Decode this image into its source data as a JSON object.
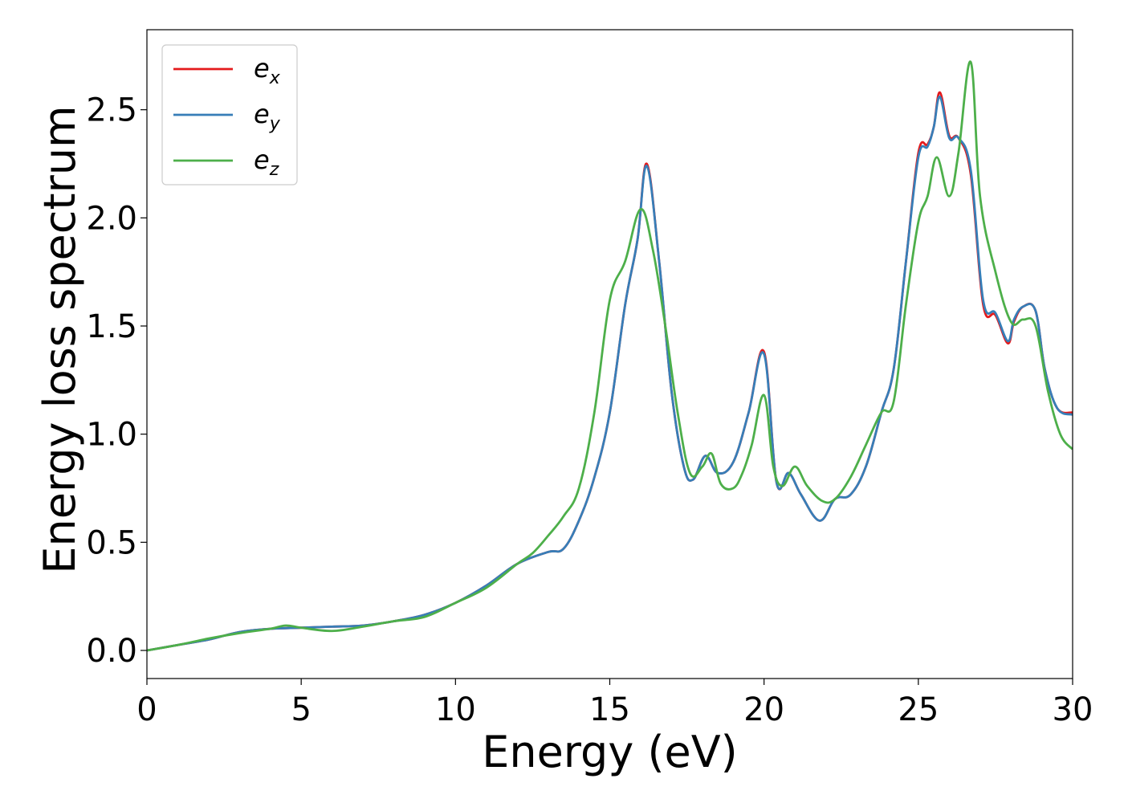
{
  "chart_data": {
    "type": "line",
    "xlabel": "Energy (eV)",
    "ylabel": "Energy loss spectrum",
    "xlim": [
      0,
      30
    ],
    "ylim": [
      -0.13,
      2.87
    ],
    "xticks": [
      0,
      5,
      10,
      15,
      20,
      25,
      30
    ],
    "xtick_labels": [
      "0",
      "5",
      "10",
      "15",
      "20",
      "25",
      "30"
    ],
    "yticks": [
      0.0,
      0.5,
      1.0,
      1.5,
      2.0,
      2.5
    ],
    "ytick_labels": [
      "0.0",
      "0.5",
      "1.0",
      "1.5",
      "2.0",
      "2.5"
    ],
    "grid": false,
    "legend_position": "top-left",
    "series": [
      {
        "name": "e_x",
        "label_base": "e",
        "label_sub": "x",
        "color": "#e41a1c",
        "x": [
          0,
          1,
          2,
          3,
          4,
          5,
          6,
          7,
          8,
          9,
          10,
          11,
          12,
          13,
          13.5,
          14,
          14.5,
          15,
          15.5,
          15.9,
          16.2,
          16.6,
          17,
          17.4,
          17.7,
          18.1,
          18.5,
          19,
          19.5,
          20,
          20.4,
          20.8,
          21.2,
          21.8,
          22.3,
          22.8,
          23.3,
          23.8,
          24.2,
          24.6,
          25,
          25.3,
          25.5,
          25.7,
          26,
          26.3,
          26.7,
          27.1,
          27.5,
          27.9,
          28.1,
          28.4,
          28.8,
          29.1,
          29.5,
          30
        ],
        "y": [
          0,
          0.025,
          0.05,
          0.085,
          0.1,
          0.105,
          0.11,
          0.115,
          0.135,
          0.165,
          0.22,
          0.3,
          0.4,
          0.455,
          0.47,
          0.6,
          0.8,
          1.1,
          1.6,
          1.9,
          2.25,
          1.8,
          1.2,
          0.85,
          0.79,
          0.9,
          0.82,
          0.87,
          1.1,
          1.38,
          0.78,
          0.82,
          0.72,
          0.6,
          0.7,
          0.72,
          0.85,
          1.1,
          1.3,
          1.8,
          2.3,
          2.34,
          2.42,
          2.58,
          2.38,
          2.37,
          2.2,
          1.6,
          1.55,
          1.42,
          1.52,
          1.59,
          1.57,
          1.3,
          1.12,
          1.1
        ]
      },
      {
        "name": "e_y",
        "label_base": "e",
        "label_sub": "y",
        "color": "#377eb8",
        "x": [
          0,
          1,
          2,
          3,
          4,
          5,
          6,
          7,
          8,
          9,
          10,
          11,
          12,
          13,
          13.5,
          14,
          14.5,
          15,
          15.5,
          15.9,
          16.2,
          16.6,
          17,
          17.4,
          17.7,
          18.1,
          18.5,
          19,
          19.5,
          20,
          20.4,
          20.8,
          21.2,
          21.8,
          22.3,
          22.8,
          23.3,
          23.8,
          24.2,
          24.6,
          25,
          25.3,
          25.5,
          25.7,
          26,
          26.3,
          26.7,
          27.1,
          27.5,
          27.9,
          28.1,
          28.4,
          28.8,
          29.1,
          29.5,
          30
        ],
        "y": [
          0,
          0.025,
          0.05,
          0.085,
          0.1,
          0.105,
          0.11,
          0.115,
          0.135,
          0.165,
          0.22,
          0.3,
          0.4,
          0.455,
          0.47,
          0.6,
          0.8,
          1.1,
          1.6,
          1.9,
          2.24,
          1.8,
          1.2,
          0.85,
          0.79,
          0.9,
          0.82,
          0.87,
          1.1,
          1.37,
          0.78,
          0.82,
          0.72,
          0.6,
          0.7,
          0.72,
          0.85,
          1.1,
          1.3,
          1.8,
          2.28,
          2.33,
          2.42,
          2.56,
          2.37,
          2.37,
          2.22,
          1.62,
          1.56,
          1.43,
          1.53,
          1.59,
          1.57,
          1.3,
          1.12,
          1.09
        ]
      },
      {
        "name": "e_z",
        "label_base": "e",
        "label_sub": "z",
        "color": "#4daf4a",
        "x": [
          0,
          1,
          2,
          3,
          4,
          4.5,
          5,
          6,
          7,
          8,
          9,
          10,
          11,
          12,
          12.5,
          13,
          13.5,
          14,
          14.5,
          15,
          15.5,
          16,
          16.4,
          16.8,
          17.2,
          17.6,
          18,
          18.3,
          18.6,
          19,
          19.3,
          19.6,
          20,
          20.3,
          20.6,
          21,
          21.4,
          21.9,
          22.3,
          22.8,
          23.3,
          23.8,
          24.2,
          24.6,
          25,
          25.3,
          25.6,
          26,
          26.3,
          26.7,
          27,
          27.5,
          28,
          28.4,
          28.8,
          29.2,
          29.6,
          30
        ],
        "y": [
          0,
          0.025,
          0.055,
          0.08,
          0.1,
          0.115,
          0.105,
          0.09,
          0.11,
          0.135,
          0.155,
          0.22,
          0.29,
          0.4,
          0.45,
          0.53,
          0.62,
          0.75,
          1.1,
          1.62,
          1.8,
          2.04,
          1.85,
          1.5,
          1.1,
          0.82,
          0.85,
          0.91,
          0.77,
          0.75,
          0.82,
          0.95,
          1.18,
          0.85,
          0.76,
          0.85,
          0.76,
          0.69,
          0.7,
          0.8,
          0.95,
          1.1,
          1.15,
          1.6,
          1.98,
          2.1,
          2.28,
          2.1,
          2.3,
          2.72,
          2.1,
          1.75,
          1.52,
          1.53,
          1.5,
          1.2,
          1.0,
          0.93
        ]
      }
    ]
  }
}
